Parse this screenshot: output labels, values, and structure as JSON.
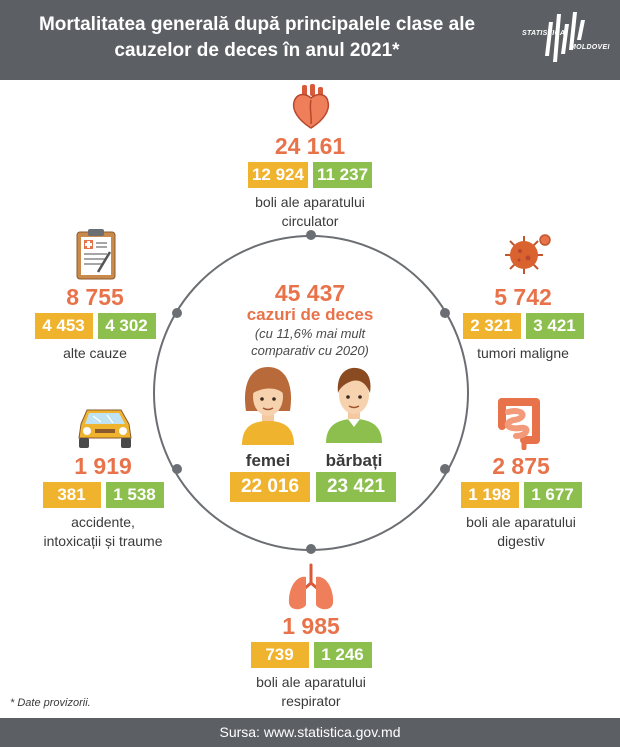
{
  "header": {
    "title_line1": "Mortalitatea generală după principalele clase ale",
    "title_line2": "cauzelor de deces în anul 2021*",
    "logo_top": "STATISTICA",
    "logo_bottom": "MOLDOVEI"
  },
  "center": {
    "total": "45 437",
    "subtitle": "cazuri de deces",
    "note_line1": "(cu 11,6% mai mult",
    "note_line2": "comparativ cu 2020)",
    "women_label": "femei",
    "women_value": "22 016",
    "men_label": "bărbați",
    "men_value": "23 421"
  },
  "causes": {
    "circulatory": {
      "total": "24 161",
      "women": "12 924",
      "men": "11 237",
      "label_line1": "boli ale aparatului",
      "label_line2": "circulator"
    },
    "tumors": {
      "total": "5 742",
      "women": "2 321",
      "men": "3 421",
      "label_line1": "tumori maligne"
    },
    "digestive": {
      "total": "2 875",
      "women": "1 198",
      "men": "1 677",
      "label_line1": "boli ale aparatului",
      "label_line2": "digestiv"
    },
    "respiratory": {
      "total": "1 985",
      "women": "739",
      "men": "1 246",
      "label_line1": "boli ale aparatului",
      "label_line2": "respirator"
    },
    "accidents": {
      "total": "1 919",
      "women": "381",
      "men": "1 538",
      "label_line1": "accidente,",
      "label_line2": "intoxicații și traume"
    },
    "other": {
      "total": "8 755",
      "women": "4 453",
      "men": "4 302",
      "label_line1": "alte cauze"
    }
  },
  "colors": {
    "women": "#f0b32e",
    "men": "#8dbf4e",
    "accent": "#e8734a",
    "header_bg": "#5c5f64"
  },
  "footnote": "* Date provizorii.",
  "footer": {
    "source": "Sursa: www.statistica.gov.md"
  }
}
